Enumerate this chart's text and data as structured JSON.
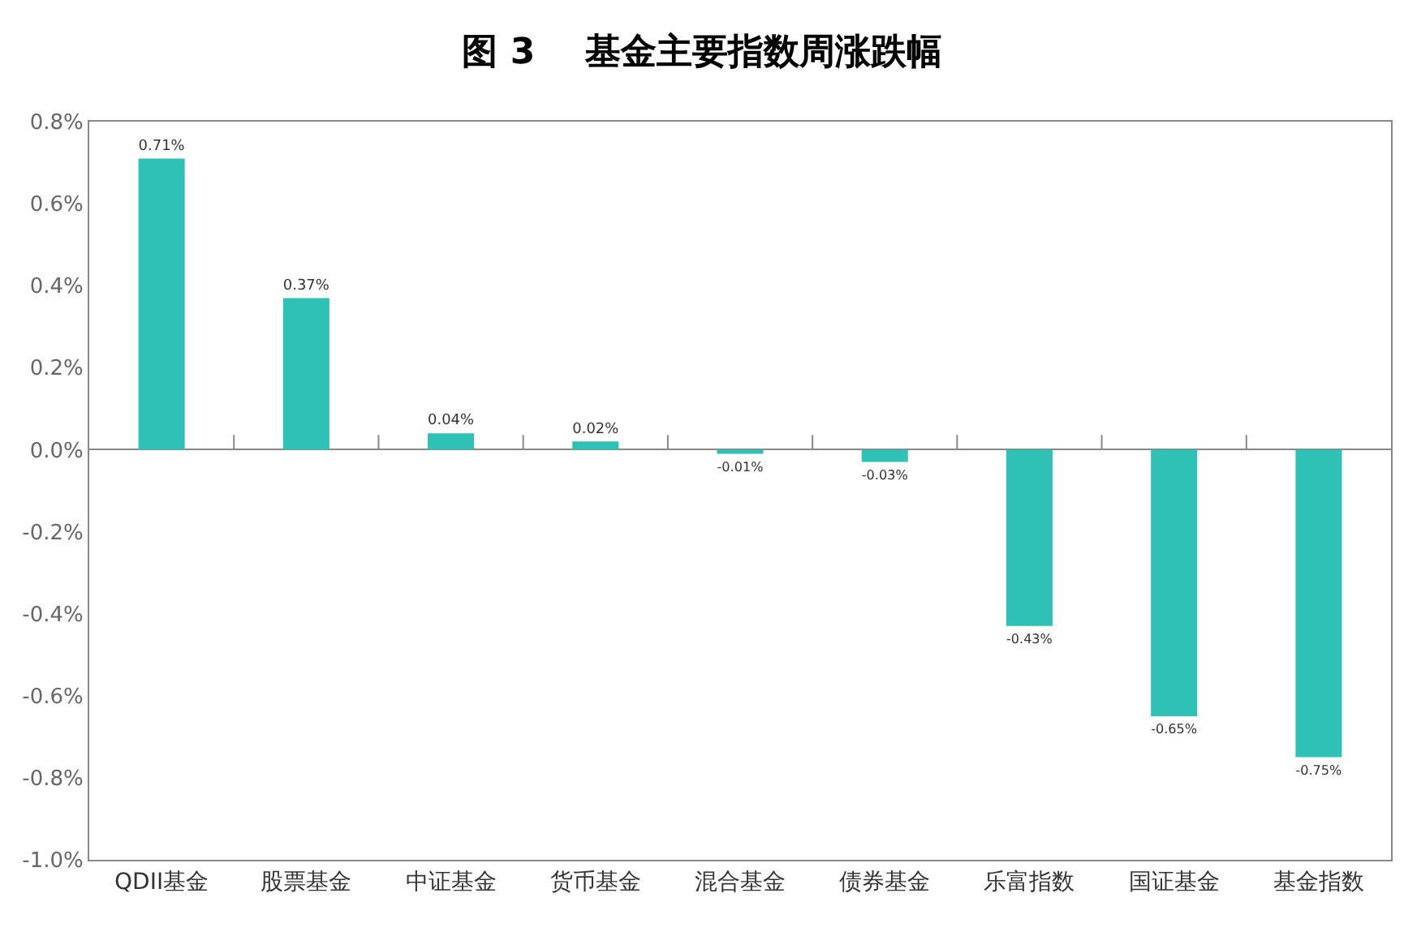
{
  "chart_data": {
    "type": "bar",
    "title": "图 3    基金主要指数周涨跌幅",
    "categories": [
      "QDII基金",
      "股票基金",
      "中证基金",
      "货币基金",
      "混合基金",
      "债券基金",
      "乐富指数",
      "国证基金",
      "基金指数"
    ],
    "values": [
      0.71,
      0.37,
      0.04,
      0.02,
      -0.01,
      -0.03,
      -0.43,
      -0.65,
      -0.75
    ],
    "value_labels": [
      "0.71%",
      "0.37%",
      "0.04%",
      "0.02%",
      "-0.01%",
      "-0.03%",
      "-0.43%",
      "-0.65%",
      "-0.75%"
    ],
    "color": "#2fc1b5",
    "ylim": [
      -1.0,
      0.8
    ],
    "yticks": [
      {
        "value": -1.0,
        "label": "-1.0%"
      },
      {
        "value": -0.8,
        "label": "-0.8%"
      },
      {
        "value": -0.6,
        "label": "-0.6%"
      },
      {
        "value": -0.4,
        "label": "-0.4%"
      },
      {
        "value": -0.2,
        "label": "-0.2%"
      },
      {
        "value": 0.0,
        "label": "0.0%"
      },
      {
        "value": 0.2,
        "label": "0.2%"
      },
      {
        "value": 0.4,
        "label": "0.4%"
      },
      {
        "value": 0.6,
        "label": "0.6%"
      },
      {
        "value": 0.8,
        "label": "0.8%"
      }
    ],
    "legend": false
  }
}
